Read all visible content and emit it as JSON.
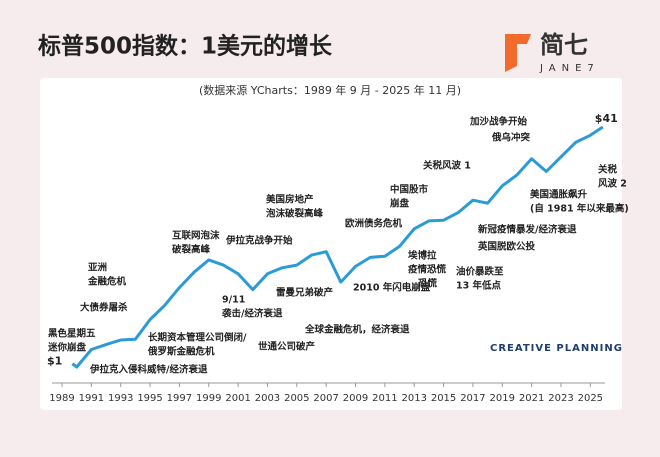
{
  "header": {
    "title": "标普500指数：1美元的增长",
    "logo": "简七",
    "logo_sub": "JANE7"
  },
  "chart_data": {
    "type": "line",
    "subtitle": "(数据来源 YCharts：1989 年 9 月 - 2025 年 11 月)",
    "log_scale": true,
    "color": "#2b9bd8",
    "x": [
      1989.7,
      1990,
      1991,
      1992,
      1993,
      1994,
      1995,
      1996,
      1997,
      1998,
      1999,
      2000,
      2001,
      2002,
      2003,
      2004,
      2005,
      2006,
      2007,
      2008,
      2009,
      2010,
      2011,
      2012,
      2013,
      2014,
      2015,
      2016,
      2017,
      2018,
      2019,
      2020,
      2021,
      2022,
      2023,
      2024,
      2025,
      2025.85
    ],
    "values": [
      1,
      0.95,
      1.25,
      1.35,
      1.45,
      1.47,
      2.0,
      2.5,
      3.3,
      4.2,
      5.1,
      4.7,
      4.1,
      3.2,
      4.1,
      4.5,
      4.7,
      5.5,
      5.8,
      3.6,
      4.6,
      5.3,
      5.4,
      6.3,
      8.3,
      9.4,
      9.5,
      10.7,
      13,
      12.4,
      16.3,
      19.3,
      24.9,
      20.4,
      25.7,
      32.2,
      36,
      41
    ],
    "value_labels": [
      "$1",
      null,
      null,
      null,
      null,
      null,
      null,
      null,
      null,
      null,
      null,
      null,
      null,
      null,
      null,
      null,
      null,
      null,
      null,
      null,
      null,
      null,
      null,
      null,
      null,
      null,
      null,
      null,
      null,
      null,
      null,
      null,
      null,
      null,
      null,
      null,
      null,
      "$41"
    ],
    "xlim": [
      1989,
      2026
    ],
    "xticks": [
      1989,
      1991,
      1993,
      1995,
      1997,
      1999,
      2001,
      2003,
      2005,
      2007,
      2009,
      2011,
      2013,
      2015,
      2017,
      2019,
      2021,
      2023,
      2025
    ],
    "annotations": [
      [
        "黑色星期五",
        "迷你崩盘"
      ],
      [
        "伊拉克入侵科威特/经济衰退"
      ],
      [
        "大债券屠杀"
      ],
      [
        "亚洲",
        "金融危机"
      ],
      [
        "长期资本管理公司倒闭/",
        "俄罗斯金融危机"
      ],
      [
        "互联网泡沫",
        "破裂高峰"
      ],
      [
        "9/11",
        "袭击/经济衰退"
      ],
      [
        "伊拉克战争开始"
      ],
      [
        "世通公司破产"
      ],
      [
        "美国房地产",
        "泡沫破裂高峰"
      ],
      [
        "雷曼兄弟破产"
      ],
      [
        "全球金融危机，经济衰退"
      ],
      [
        "欧洲债务危机"
      ],
      [
        "2010 年闪电崩盘"
      ],
      [
        "中国股市",
        "崩盘"
      ],
      [
        "埃博拉",
        "疫情恐慌",
        "恐慌"
      ],
      [
        "油价暴跌至",
        "13 年低点"
      ],
      [
        "关税风波 1"
      ],
      [
        "新冠疫情暴发/经济衰退"
      ],
      [
        "英国脱欧公投"
      ],
      [
        "俄乌冲突"
      ],
      [
        "加沙战争开始"
      ],
      [
        "美国通胀飙升",
        "(自 1981 年以来最高)"
      ],
      [
        "关税",
        "风波 2"
      ]
    ],
    "watermark": "CREATIVE PLANNING"
  }
}
